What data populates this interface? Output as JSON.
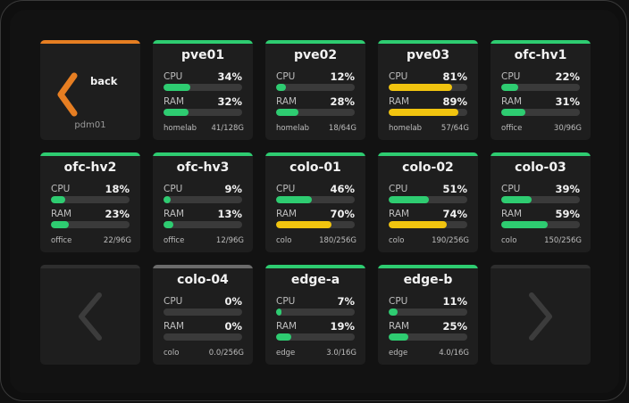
{
  "colors": {
    "green": "#2ecc71",
    "yellow": "#f1c40f",
    "orange": "#e67e22",
    "disabled_bar": "#3a3a3a",
    "gray_bar": "#6b6b6b"
  },
  "back": {
    "label": "back",
    "context": "pdm01",
    "icon": "chevron-left-icon"
  },
  "nodes": [
    {
      "name": "pve01",
      "cpu_label": "CPU",
      "cpu": 34,
      "cpu_text": "34%",
      "ram_label": "RAM",
      "ram": 32,
      "ram_text": "32%",
      "group": "homelab",
      "disk": "41/128G",
      "status": "green"
    },
    {
      "name": "pve02",
      "cpu_label": "CPU",
      "cpu": 12,
      "cpu_text": "12%",
      "ram_label": "RAM",
      "ram": 28,
      "ram_text": "28%",
      "group": "homelab",
      "disk": "18/64G",
      "status": "green"
    },
    {
      "name": "pve03",
      "cpu_label": "CPU",
      "cpu": 81,
      "cpu_text": "81%",
      "ram_label": "RAM",
      "ram": 89,
      "ram_text": "89%",
      "group": "homelab",
      "disk": "57/64G",
      "status": "green"
    },
    {
      "name": "ofc-hv1",
      "cpu_label": "CPU",
      "cpu": 22,
      "cpu_text": "22%",
      "ram_label": "RAM",
      "ram": 31,
      "ram_text": "31%",
      "group": "office",
      "disk": "30/96G",
      "status": "green"
    },
    {
      "name": "ofc-hv2",
      "cpu_label": "CPU",
      "cpu": 18,
      "cpu_text": "18%",
      "ram_label": "RAM",
      "ram": 23,
      "ram_text": "23%",
      "group": "office",
      "disk": "22/96G",
      "status": "green"
    },
    {
      "name": "ofc-hv3",
      "cpu_label": "CPU",
      "cpu": 9,
      "cpu_text": "9%",
      "ram_label": "RAM",
      "ram": 13,
      "ram_text": "13%",
      "group": "office",
      "disk": "12/96G",
      "status": "green"
    },
    {
      "name": "colo-01",
      "cpu_label": "CPU",
      "cpu": 46,
      "cpu_text": "46%",
      "ram_label": "RAM",
      "ram": 70,
      "ram_text": "70%",
      "group": "colo",
      "disk": "180/256G",
      "status": "green"
    },
    {
      "name": "colo-02",
      "cpu_label": "CPU",
      "cpu": 51,
      "cpu_text": "51%",
      "ram_label": "RAM",
      "ram": 74,
      "ram_text": "74%",
      "group": "colo",
      "disk": "190/256G",
      "status": "green"
    },
    {
      "name": "colo-03",
      "cpu_label": "CPU",
      "cpu": 39,
      "cpu_text": "39%",
      "ram_label": "RAM",
      "ram": 59,
      "ram_text": "59%",
      "group": "colo",
      "disk": "150/256G",
      "status": "green"
    },
    {
      "name": "colo-04",
      "cpu_label": "CPU",
      "cpu": 0,
      "cpu_text": "0%",
      "ram_label": "RAM",
      "ram": 0,
      "ram_text": "0%",
      "group": "colo",
      "disk": "0.0/256G",
      "status": "gray"
    },
    {
      "name": "edge-a",
      "cpu_label": "CPU",
      "cpu": 7,
      "cpu_text": "7%",
      "ram_label": "RAM",
      "ram": 19,
      "ram_text": "19%",
      "group": "edge",
      "disk": "3.0/16G",
      "status": "green"
    },
    {
      "name": "edge-b",
      "cpu_label": "CPU",
      "cpu": 11,
      "cpu_text": "11%",
      "ram_label": "RAM",
      "ram": 25,
      "ram_text": "25%",
      "group": "edge",
      "disk": "4.0/16G",
      "status": "green"
    }
  ],
  "pager": {
    "prev_icon": "chevron-left-icon",
    "next_icon": "chevron-right-icon",
    "prev_enabled": false,
    "next_enabled": false
  }
}
